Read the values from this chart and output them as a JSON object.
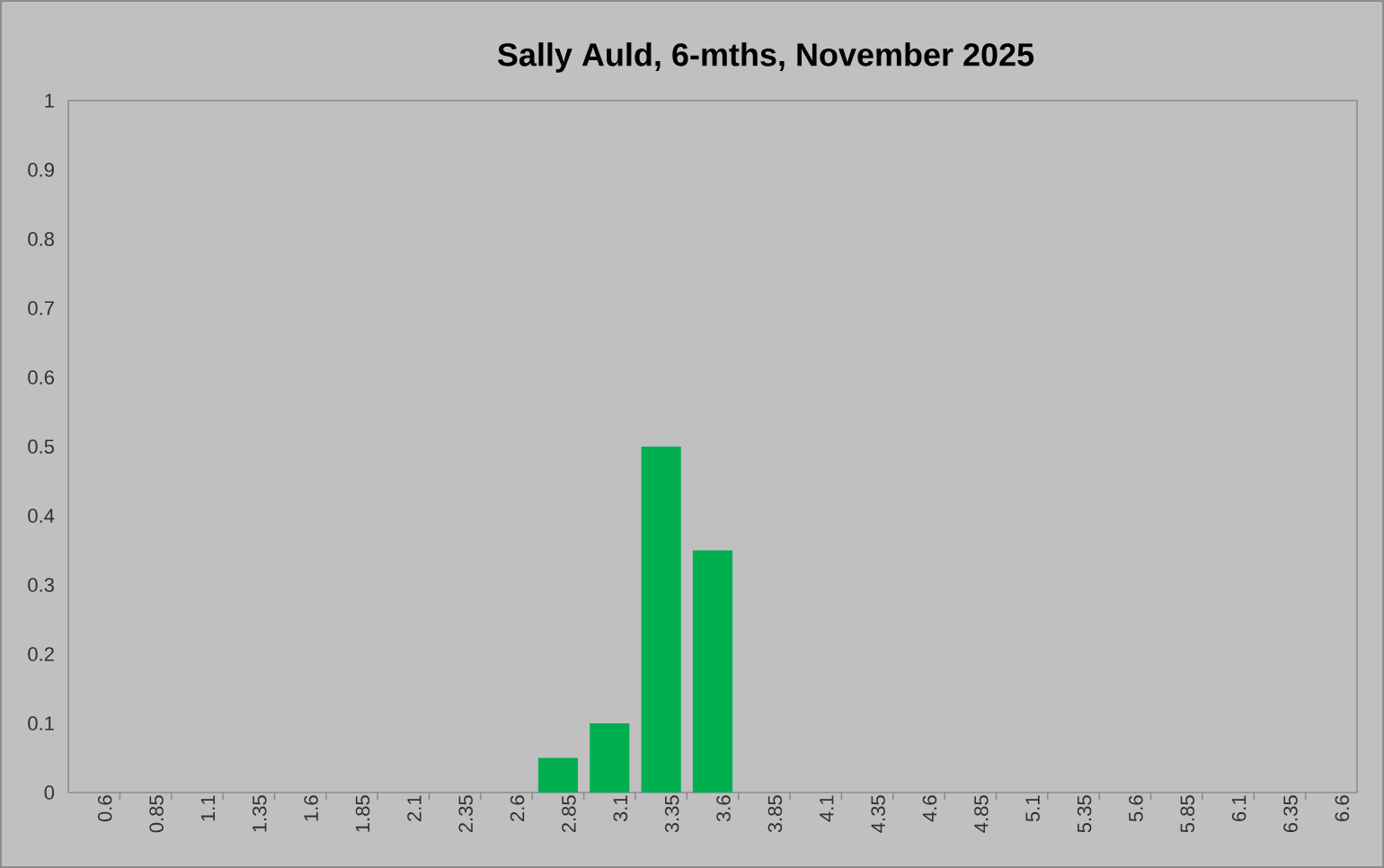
{
  "chart_data": {
    "type": "bar",
    "title": "Sally Auld, 6-mths, November 2025",
    "categories": [
      "0.6",
      "0.85",
      "1.1",
      "1.35",
      "1.6",
      "1.85",
      "2.1",
      "2.35",
      "2.6",
      "2.85",
      "3.1",
      "3.35",
      "3.6",
      "3.85",
      "4.1",
      "4.35",
      "4.6",
      "4.85",
      "5.1",
      "5.35",
      "5.6",
      "5.85",
      "6.1",
      "6.35",
      "6.6"
    ],
    "values": [
      0,
      0,
      0,
      0,
      0,
      0,
      0,
      0,
      0,
      0.05,
      0.1,
      0.5,
      0.35,
      0,
      0,
      0,
      0,
      0,
      0,
      0,
      0,
      0,
      0,
      0,
      0
    ],
    "color": "#00b050",
    "ylim": [
      0,
      1
    ],
    "yticks": [
      0,
      0.1,
      0.2,
      0.3,
      0.4,
      0.5,
      0.6,
      0.7,
      0.8,
      0.9,
      1
    ]
  }
}
